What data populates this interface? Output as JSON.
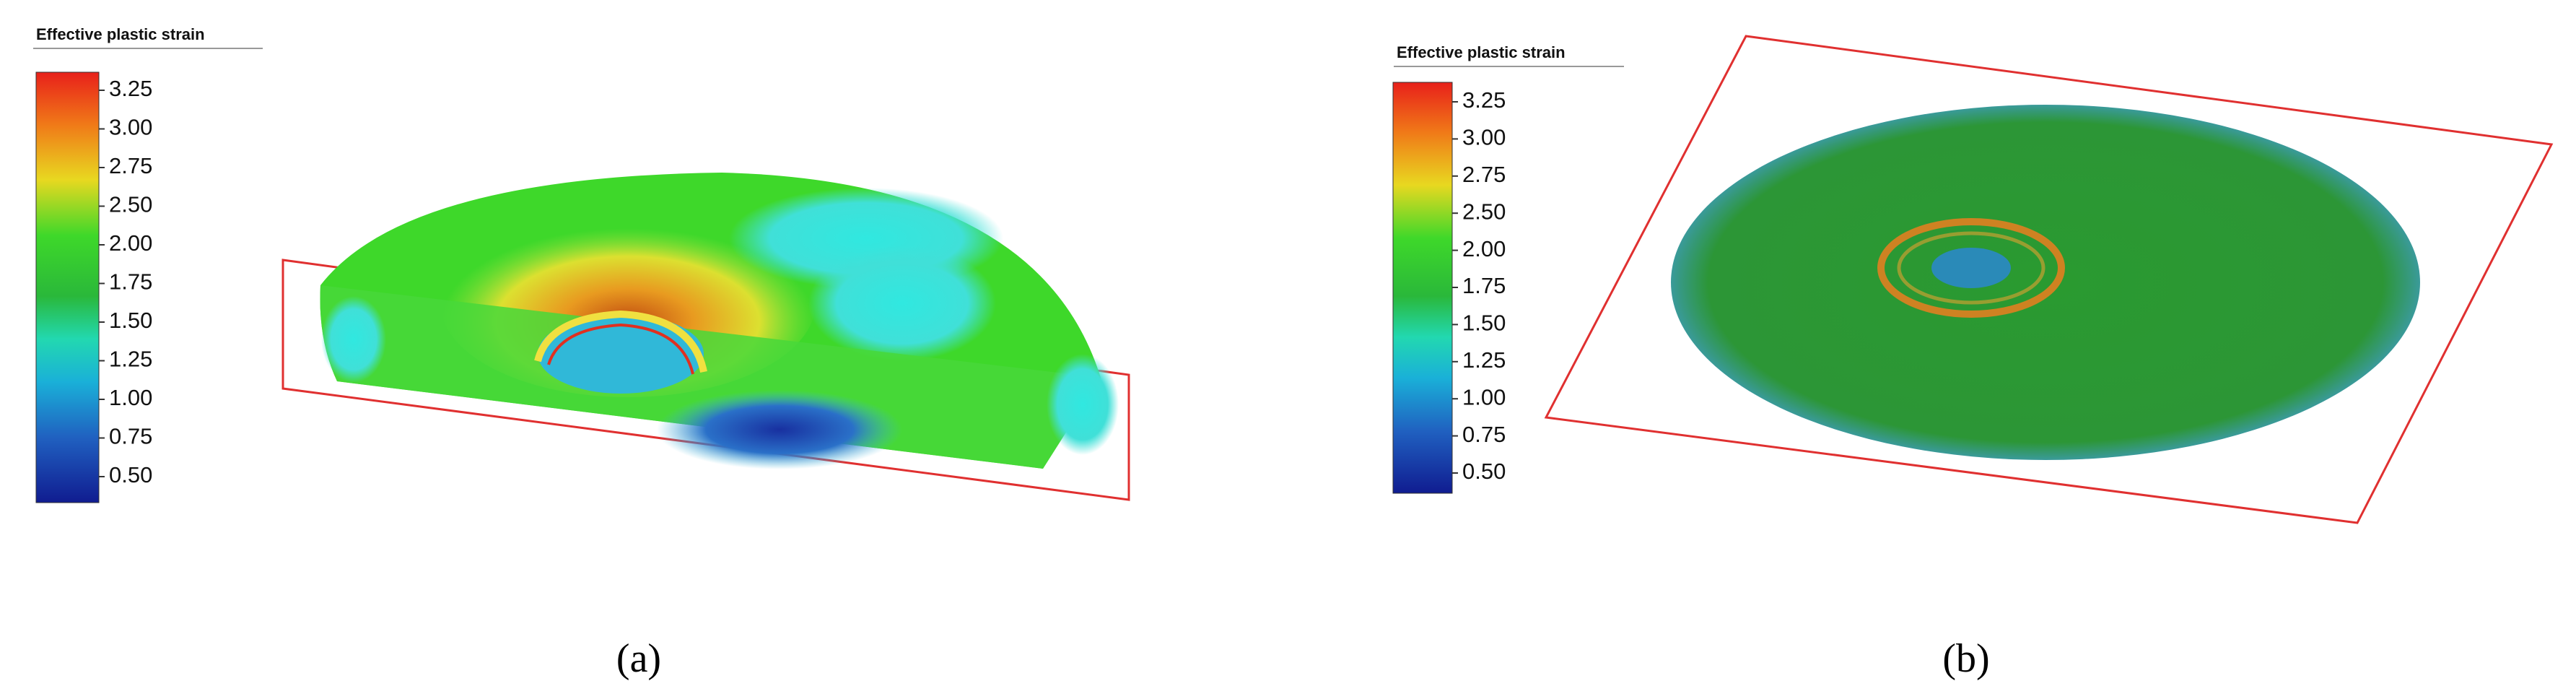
{
  "panels": [
    {
      "legend_title": "Effective plastic strain",
      "ticks": [
        "3.25",
        "3.00",
        "2.75",
        "2.50",
        "2.00",
        "1.75",
        "1.50",
        "1.25",
        "1.00",
        "0.75",
        "0.50"
      ],
      "caption": "(a)"
    },
    {
      "legend_title": "Effective plastic strain",
      "ticks": [
        "3.25",
        "3.00",
        "2.75",
        "2.50",
        "2.00",
        "1.75",
        "1.50",
        "1.25",
        "1.00",
        "0.75",
        "0.50"
      ],
      "caption": "(b)"
    }
  ]
}
